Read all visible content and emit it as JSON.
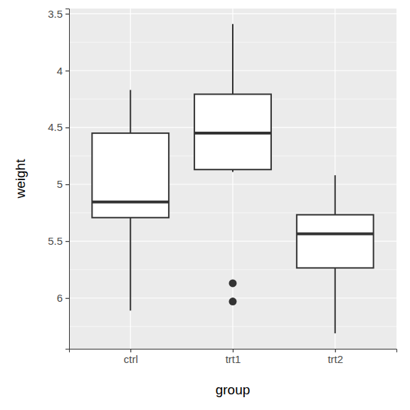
{
  "chart_data": {
    "type": "box",
    "x_label": "group",
    "y_label": "weight",
    "categories": [
      "ctrl",
      "trt1",
      "trt2"
    ],
    "stats": [
      {
        "whisker_low": 4.17,
        "q1": 4.55,
        "median": 5.155,
        "q3": 5.2925,
        "whisker_high": 6.11,
        "outliers": []
      },
      {
        "whisker_low": 3.59,
        "q1": 4.2075,
        "median": 4.55,
        "q3": 4.87,
        "whisker_high": 4.89,
        "outliers": [
          5.87,
          6.03
        ]
      },
      {
        "whisker_low": 4.92,
        "q1": 5.2675,
        "median": 5.435,
        "q3": 5.735,
        "whisker_high": 6.31,
        "outliers": []
      }
    ],
    "ylim": [
      6.446,
      3.454
    ],
    "yticks": [
      3.5,
      4.0,
      4.5,
      5.0,
      5.5,
      6.0
    ],
    "grid": true
  }
}
